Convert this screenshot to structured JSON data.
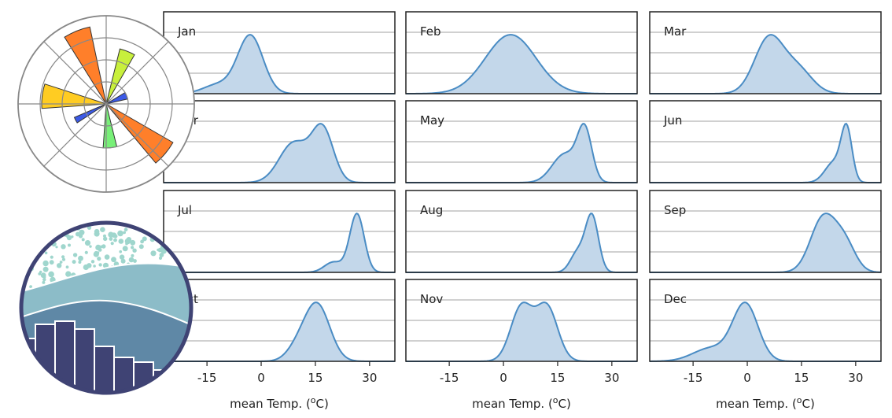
{
  "chart_data": {
    "type": "area",
    "kind": "density (KDE) small multiples",
    "layout": {
      "rows": 4,
      "cols": 3
    },
    "xlabel": "mean Temp. (°C)",
    "xlabel_parts": {
      "before": "mean Temp. (",
      "sup": "o",
      "after": "C)"
    },
    "xlim": [
      -27,
      37
    ],
    "xticks": [
      -15,
      0,
      15,
      30
    ],
    "xtick_labels": [
      "-15",
      "0",
      "15",
      "30"
    ],
    "ylim": [
      0,
      1
    ],
    "horizontal_gridlines": [
      0.25,
      0.5,
      0.75
    ],
    "vertical_grid": false,
    "colors": {
      "fill": "#c3d7ea",
      "line": "#4a8cc4",
      "grid": "#b4b4b4",
      "frame": "#222222"
    },
    "panels": [
      {
        "name": "Jan",
        "components": [
          {
            "mu": -3,
            "sigma": 3.5,
            "w": 0.85
          },
          {
            "mu": -12,
            "sigma": 4,
            "w": 0.15
          }
        ]
      },
      {
        "name": "Feb",
        "components": [
          {
            "mu": 2,
            "sigma": 7,
            "w": 1
          }
        ]
      },
      {
        "name": "Mar",
        "components": [
          {
            "mu": 6,
            "sigma": 4,
            "w": 0.7
          },
          {
            "mu": 14,
            "sigma": 4,
            "w": 0.3
          }
        ]
      },
      {
        "name": "Apr",
        "components": [
          {
            "mu": 9,
            "sigma": 4,
            "w": 0.5
          },
          {
            "mu": 17,
            "sigma": 3,
            "w": 0.5
          }
        ]
      },
      {
        "name": "May",
        "components": [
          {
            "mu": 17,
            "sigma": 3.5,
            "w": 0.5
          },
          {
            "mu": 22.5,
            "sigma": 2,
            "w": 0.5
          }
        ]
      },
      {
        "name": "Jun",
        "components": [
          {
            "mu": 27.5,
            "sigma": 1.5,
            "w": 0.6
          },
          {
            "mu": 24,
            "sigma": 2.5,
            "w": 0.4
          }
        ]
      },
      {
        "name": "Jul",
        "components": [
          {
            "mu": 26.5,
            "sigma": 2,
            "w": 0.82
          },
          {
            "mu": 20,
            "sigma": 2.5,
            "w": 0.18
          }
        ]
      },
      {
        "name": "Aug",
        "components": [
          {
            "mu": 24.5,
            "sigma": 1.8,
            "w": 0.72
          },
          {
            "mu": 20.5,
            "sigma": 2,
            "w": 0.28
          }
        ]
      },
      {
        "name": "Sep",
        "components": [
          {
            "mu": 21,
            "sigma": 3.5,
            "w": 0.7
          },
          {
            "mu": 27,
            "sigma": 3,
            "w": 0.3
          }
        ]
      },
      {
        "name": "Oct",
        "components": [
          {
            "mu": 15.5,
            "sigma": 3.5,
            "w": 0.85
          },
          {
            "mu": 10,
            "sigma": 3,
            "w": 0.15
          }
        ]
      },
      {
        "name": "Nov",
        "components": [
          {
            "mu": 5,
            "sigma": 3,
            "w": 0.5
          },
          {
            "mu": 12,
            "sigma": 3,
            "w": 0.5
          }
        ]
      },
      {
        "name": "Dec",
        "components": [
          {
            "mu": -0.5,
            "sigma": 3.5,
            "w": 0.75
          },
          {
            "mu": -10,
            "sigma": 5,
            "w": 0.25
          }
        ]
      }
    ]
  },
  "logo": {
    "wedge_colors": [
      "#ff7f2a",
      "#c8f03c",
      "#3c5ae6",
      "#ff7f2a",
      "#78f078",
      "#3c5ae6",
      "#ffcc22"
    ],
    "ring_color": "#3f4374",
    "dot_color": "#9fd6cd",
    "wave_light": "#8cbcc8",
    "wave_mid": "#5f88a6",
    "hist_color": "#3f4374"
  }
}
